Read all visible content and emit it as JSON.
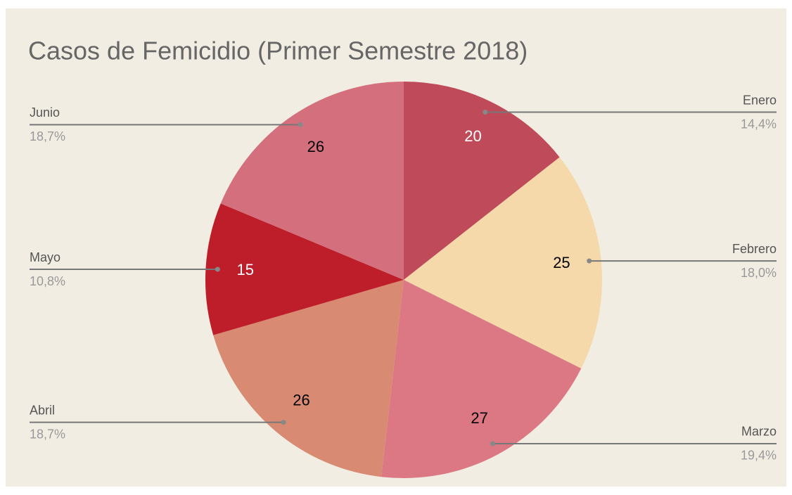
{
  "chart_data": {
    "type": "pie",
    "title": "Casos de Femicidio (Primer Semestre 2018)",
    "categories": [
      "Enero",
      "Febrero",
      "Marzo",
      "Abril",
      "Mayo",
      "Junio"
    ],
    "values": [
      20,
      25,
      27,
      26,
      15,
      26
    ],
    "percent_labels": [
      "14,4%",
      "18,0%",
      "19,4%",
      "18,7%",
      "10,8%",
      "18,7%"
    ],
    "colors": [
      "#bf4b5a",
      "#f5d9ab",
      "#db7884",
      "#d88a72",
      "#be1e2a",
      "#d46f7d"
    ],
    "value_label_colors": [
      "#ffffff",
      "#000000",
      "#000000",
      "#000000",
      "#ffffff",
      "#000000"
    ]
  }
}
